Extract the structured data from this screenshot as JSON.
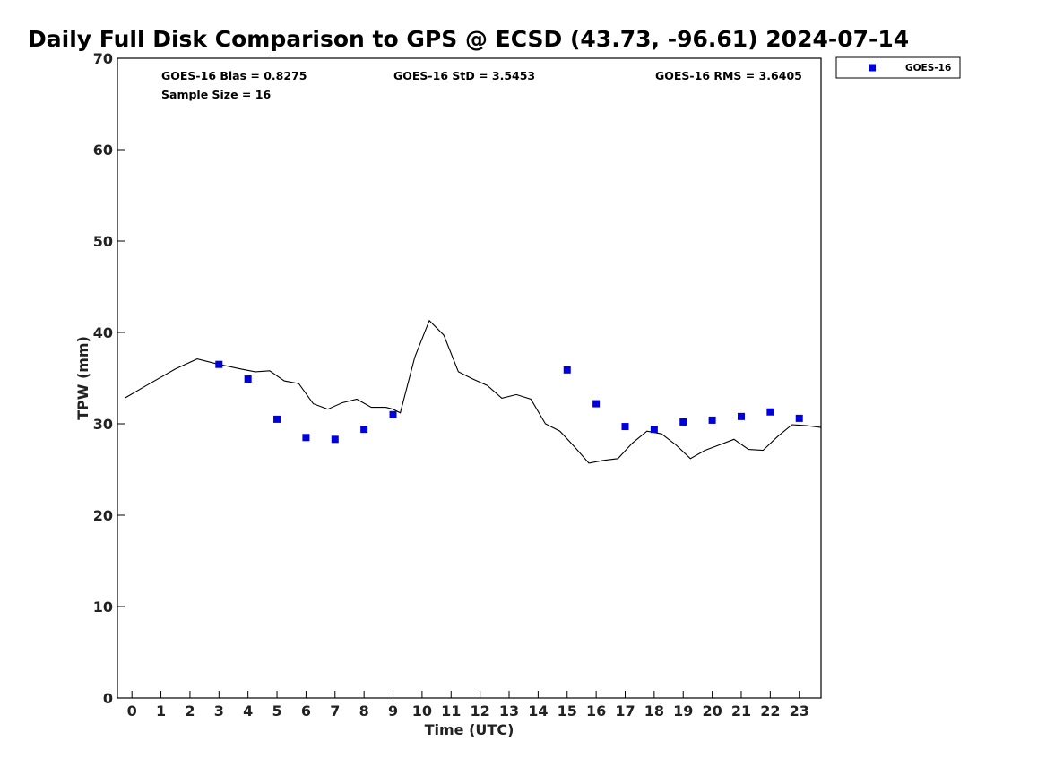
{
  "chart_data": {
    "type": "scatter",
    "title": "Daily Full Disk Comparison to GPS @ ECSD (43.73, -96.61) 2024-07-14",
    "xlabel": "Time (UTC)",
    "ylabel": "TPW (mm)",
    "xlim": [
      -0.5,
      23.75
    ],
    "ylim": [
      0,
      70
    ],
    "x_ticks": [
      0,
      1,
      2,
      3,
      4,
      5,
      6,
      7,
      8,
      9,
      10,
      11,
      12,
      13,
      14,
      15,
      16,
      17,
      18,
      19,
      20,
      21,
      22,
      23
    ],
    "y_ticks": [
      0,
      10,
      20,
      30,
      40,
      50,
      60,
      70
    ],
    "grid": false,
    "legend_position": "top-right",
    "stats": {
      "bias": "GOES-16 Bias = 0.8275",
      "std": "GOES-16 StD = 3.5453",
      "rms": "GOES-16 RMS = 3.6405",
      "sample_size": "Sample Size = 16"
    },
    "series": [
      {
        "name": "GOES-16",
        "kind": "scatter",
        "color": "#0000dd",
        "x": [
          3,
          4,
          5,
          6,
          7,
          8,
          9,
          15,
          16,
          17,
          18,
          19,
          20,
          21,
          22,
          23
        ],
        "y": [
          36.5,
          34.9,
          30.5,
          28.5,
          28.3,
          29.4,
          31.0,
          35.9,
          32.2,
          29.7,
          29.4,
          30.2,
          30.4,
          30.8,
          31.3,
          30.6
        ]
      },
      {
        "kind": "line",
        "color": "#000000",
        "x": [
          -0.25,
          0.5,
          1.5,
          2.25,
          3.0,
          3.75,
          4.25,
          4.75,
          5.25,
          5.75,
          6.25,
          6.75,
          7.25,
          7.75,
          8.25,
          8.75,
          9.0,
          9.25,
          9.75,
          10.25,
          10.75,
          11.25,
          11.75,
          12.25,
          12.75,
          13.25,
          13.75,
          14.25,
          14.75,
          15.25,
          15.75,
          16.25,
          16.75,
          17.25,
          17.75,
          18.25,
          18.75,
          19.25,
          19.75,
          20.25,
          20.75,
          21.25,
          21.75,
          22.25,
          22.75,
          23.25,
          23.75
        ],
        "y": [
          32.8,
          34.2,
          36.0,
          37.1,
          36.5,
          36.0,
          35.7,
          35.8,
          34.7,
          34.4,
          32.2,
          31.6,
          32.3,
          32.7,
          31.8,
          31.8,
          31.6,
          31.2,
          37.3,
          41.3,
          39.7,
          35.7,
          34.9,
          34.2,
          32.8,
          33.2,
          32.7,
          30.0,
          29.2,
          27.5,
          25.7,
          26.0,
          26.2,
          27.9,
          29.2,
          28.9,
          27.7,
          26.2,
          27.1,
          27.7,
          28.3,
          27.2,
          27.1,
          28.6,
          29.9,
          29.8,
          29.6
        ]
      }
    ]
  }
}
